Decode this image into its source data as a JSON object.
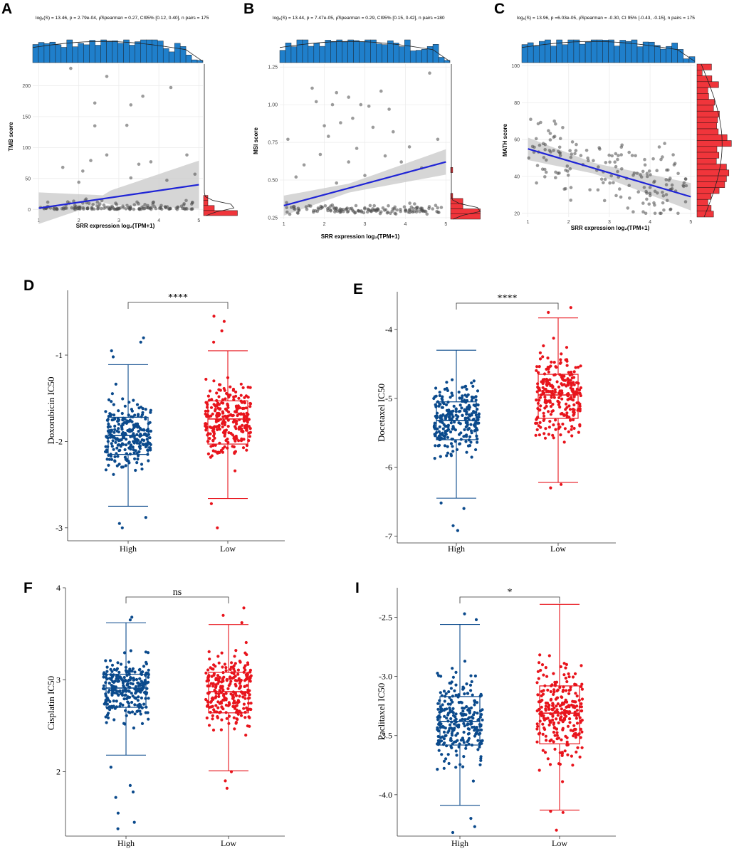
{
  "chart_data": [
    {
      "panel": "A",
      "type": "scatter",
      "stat_text": "logₑ(S) = 13.46, p = 2.79e-04, ρ̂Spearman = 0.27, CI95% [0.12, 0.40], n pairs = 175",
      "xlabel": "SRR expression log₂(TPM+1)",
      "ylabel": "TMB score",
      "xlim": [
        0.85,
        5.1
      ],
      "ylim": [
        -10,
        235
      ],
      "xticks": [
        "1",
        "2",
        "3",
        "4",
        "5"
      ],
      "yticks": [
        "0",
        "50",
        "100",
        "150",
        "200"
      ],
      "fit": {
        "x0": 1,
        "y0": 2,
        "x1": 5,
        "y1": 40,
        "ci0": 8,
        "ci1": 38
      },
      "outliers": [
        [
          1.8,
          228
        ],
        [
          2.7,
          215
        ],
        [
          4.3,
          197
        ],
        [
          2.4,
          172
        ],
        [
          2.4,
          135
        ],
        [
          3.6,
          183
        ],
        [
          3.3,
          169
        ],
        [
          3.2,
          136
        ],
        [
          2.7,
          88
        ],
        [
          2.3,
          79
        ],
        [
          1.6,
          68
        ],
        [
          4.7,
          88
        ],
        [
          3.8,
          77
        ],
        [
          2.1,
          62
        ],
        [
          3.3,
          51
        ],
        [
          4.2,
          47
        ],
        [
          2.0,
          44
        ],
        [
          4.9,
          57
        ],
        [
          3.5,
          73
        ]
      ]
    },
    {
      "panel": "B",
      "type": "scatter",
      "stat_text": "logₑ(S) = 13.44, p = 7.47e-05, ρ̂Spearman = 0.29, CI95% [0.15, 0.42], n pairs =180",
      "xlabel": "SRR expression log₂(TPM+1)",
      "ylabel": "MSI score",
      "xlim": [
        0.9,
        5.1
      ],
      "ylim": [
        0.24,
        1.27
      ],
      "xticks": [
        "1",
        "2",
        "3",
        "4",
        "5"
      ],
      "yticks": [
        "0.25",
        "0.50",
        "0.75",
        "1.00",
        "1.25"
      ],
      "fit": {
        "x0": 1,
        "y0": 0.33,
        "x1": 5,
        "y1": 0.62,
        "ci0": 0.05,
        "ci1": 0.07
      },
      "outliers": [
        [
          4.6,
          1.21
        ],
        [
          1.7,
          1.11
        ],
        [
          2.3,
          1.08
        ],
        [
          3.4,
          1.09
        ],
        [
          2.6,
          1.05
        ],
        [
          1.8,
          1.02
        ],
        [
          2.2,
          1.0
        ],
        [
          2.9,
          1.0
        ],
        [
          3.1,
          0.99
        ],
        [
          3.6,
          0.97
        ],
        [
          1.1,
          0.77
        ],
        [
          2.0,
          0.86
        ],
        [
          2.4,
          0.88
        ],
        [
          2.7,
          0.91
        ],
        [
          3.2,
          0.85
        ],
        [
          3.7,
          0.82
        ],
        [
          2.1,
          0.79
        ],
        [
          4.1,
          0.72
        ],
        [
          1.5,
          0.6
        ],
        [
          2.8,
          0.71
        ],
        [
          3.5,
          0.66
        ],
        [
          4.4,
          0.58
        ],
        [
          1.3,
          0.52
        ],
        [
          2.3,
          0.48
        ],
        [
          3.0,
          0.53
        ],
        [
          4.8,
          0.77
        ],
        [
          3.9,
          0.62
        ],
        [
          1.9,
          0.67
        ],
        [
          2.6,
          0.62
        ]
      ]
    },
    {
      "panel": "C",
      "type": "scatter",
      "stat_text": "logₑ(S) = 13.96, p =6.03e-05, ρ̂Spearman = -0.30, CI 95% [-0.43, -0.15], n pairs = 175",
      "xlabel": "SRR expression log₂(TPM+1)",
      "ylabel": "MATH score",
      "xlim": [
        0.85,
        5.1
      ],
      "ylim": [
        18,
        101
      ],
      "xticks": [
        "1",
        "2",
        "3",
        "4",
        "5"
      ],
      "yticks": [
        "20",
        "40",
        "60",
        "80",
        "100"
      ],
      "fit": {
        "x0": 1,
        "y0": 55,
        "x1": 5,
        "y1": 29,
        "ci0": 5,
        "ci1": 6
      }
    },
    {
      "panel": "D",
      "type": "box",
      "ylabel": "Doxorubicin IC50",
      "categories": [
        "High",
        "Low"
      ],
      "ylim": [
        -3.15,
        -0.25
      ],
      "yticks": [
        "-3",
        "-2",
        "-1"
      ],
      "significance": "****",
      "boxes": [
        {
          "group": "High",
          "min": -2.75,
          "q1": -2.15,
          "median": -1.93,
          "q3": -1.72,
          "max": -1.11,
          "outliers": [
            -3.0,
            -2.95,
            -2.88,
            -0.8,
            -0.85,
            -0.95,
            -1.02
          ]
        },
        {
          "group": "Low",
          "min": -2.66,
          "q1": -2.03,
          "median": -1.74,
          "q3": -1.53,
          "max": -0.95,
          "outliers": [
            -3.0,
            -2.72,
            -0.55,
            -0.61,
            -0.72,
            -0.85
          ]
        }
      ]
    },
    {
      "panel": "E",
      "type": "box",
      "ylabel": "Docetaxel IC50",
      "categories": [
        "High",
        "Low"
      ],
      "ylim": [
        -7.1,
        -3.45
      ],
      "yticks": [
        "-7",
        "-6",
        "-5",
        "-4"
      ],
      "significance": "****",
      "boxes": [
        {
          "group": "High",
          "min": -6.45,
          "q1": -5.6,
          "median": -5.32,
          "q3": -5.05,
          "max": -4.3,
          "outliers": [
            -6.92,
            -6.85,
            -6.6,
            -6.52
          ]
        },
        {
          "group": "Low",
          "min": -6.22,
          "q1": -5.29,
          "median": -4.95,
          "q3": -4.65,
          "max": -3.83,
          "outliers": [
            -6.3,
            -6.25,
            -3.68,
            -3.75
          ]
        }
      ]
    },
    {
      "panel": "F",
      "type": "box",
      "ylabel": "Cisplatin IC50",
      "categories": [
        "High",
        "Low"
      ],
      "ylim": [
        1.3,
        4.0
      ],
      "yticks": [
        "2",
        "3",
        "4"
      ],
      "significance": "ns",
      "boxes": [
        {
          "group": "High",
          "min": 2.18,
          "q1": 2.7,
          "median": 2.91,
          "q3": 3.06,
          "max": 3.62,
          "outliers": [
            1.38,
            1.45,
            1.55,
            1.72,
            1.78,
            1.85,
            2.05,
            3.65,
            3.68
          ]
        },
        {
          "group": "Low",
          "min": 2.01,
          "q1": 2.64,
          "median": 2.87,
          "q3": 3.08,
          "max": 3.6,
          "outliers": [
            1.82,
            1.9,
            2.0,
            3.62,
            3.7,
            3.78
          ]
        }
      ]
    },
    {
      "panel": "I",
      "type": "box",
      "ylabel": "Paclitaxel IC50",
      "categories": [
        "High",
        "Low"
      ],
      "ylim": [
        -4.35,
        -2.25
      ],
      "yticks": [
        "-4.0",
        "-3.5",
        "-3.0",
        "-2.5"
      ],
      "significance": "*",
      "boxes": [
        {
          "group": "High",
          "min": -4.09,
          "q1": -3.58,
          "median": -3.38,
          "q3": -3.17,
          "max": -2.56,
          "outliers": [
            -4.32,
            -4.27,
            -4.2,
            -2.47,
            -2.52
          ]
        },
        {
          "group": "Low",
          "min": -4.13,
          "q1": -3.57,
          "median": -3.31,
          "q3": -3.08,
          "max": -2.39,
          "outliers": [
            -4.3,
            -4.15,
            -4.14
          ]
        }
      ]
    }
  ],
  "colors": {
    "high": "#0b4a8c",
    "low": "#e8141c",
    "hist_blue": "#1f7fcb",
    "hist_red": "#f0353b",
    "fit_line": "#1f24d6",
    "ci_band": "#c8c8c8",
    "scatter_point": "#4a4a4a"
  }
}
